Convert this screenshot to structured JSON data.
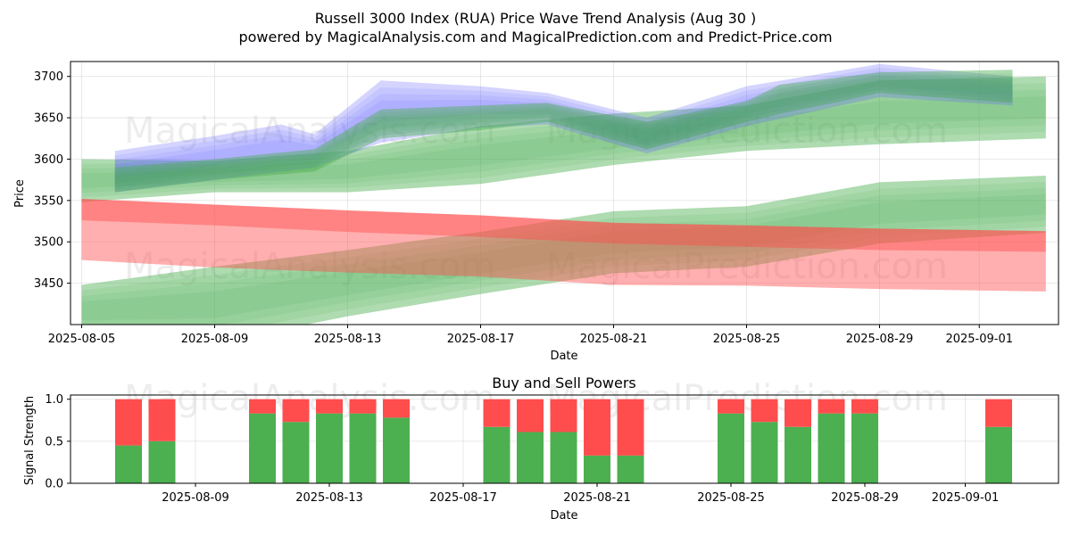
{
  "title": "Russell 3000 Index (RUA) Price Wave Trend Analysis (Aug 30 )",
  "subtitle": "powered by MagicalAnalysis.com and MagicalPrediction.com and Predict-Price.com",
  "watermarks": [
    "MagicalAnalysis.com",
    "MagicalPrediction.com"
  ],
  "colors": {
    "green_band": "#4caf50",
    "red_band": "#ff4d4d",
    "blue_band": "#6666ff",
    "buy": "#4caf50",
    "sell": "#ff4d4d"
  },
  "chart_data": [
    {
      "type": "area",
      "title": "",
      "xlabel": "Date",
      "ylabel": "Price",
      "xlim": [
        "2025-08-05",
        "2025-09-04"
      ],
      "ylim": [
        3400,
        3718
      ],
      "x_ticks": [
        "2025-08-05",
        "2025-08-09",
        "2025-08-13",
        "2025-08-17",
        "2025-08-21",
        "2025-08-25",
        "2025-08-29",
        "2025-09-01"
      ],
      "y_ticks": [
        3450,
        3500,
        3550,
        3600,
        3650,
        3700
      ],
      "grid": true,
      "series": [
        {
          "color": "green",
          "x": [
            "2025-08-05",
            "2025-08-09",
            "2025-08-13",
            "2025-08-17",
            "2025-08-21",
            "2025-08-25",
            "2025-08-29",
            "2025-09-03"
          ],
          "upper": [
            3600,
            3598,
            3610,
            3640,
            3655,
            3665,
            3695,
            3700
          ],
          "lower": [
            3548,
            3560,
            3560,
            3570,
            3593,
            3610,
            3618,
            3625
          ]
        },
        {
          "color": "green",
          "x": [
            "2025-08-05",
            "2025-08-09",
            "2025-08-13",
            "2025-08-17",
            "2025-08-21",
            "2025-08-25",
            "2025-08-29",
            "2025-09-03"
          ],
          "upper": [
            3448,
            3470,
            3490,
            3512,
            3537,
            3543,
            3572,
            3580
          ],
          "lower": [
            3385,
            3378,
            3410,
            3437,
            3462,
            3470,
            3498,
            3511
          ]
        },
        {
          "color": "red",
          "x": [
            "2025-08-05",
            "2025-08-09",
            "2025-08-13",
            "2025-08-17",
            "2025-08-21",
            "2025-08-25",
            "2025-08-29",
            "2025-09-03"
          ],
          "upper": [
            3552,
            3545,
            3538,
            3532,
            3523,
            3520,
            3516,
            3513
          ],
          "lower": [
            3478,
            3469,
            3463,
            3458,
            3448,
            3447,
            3443,
            3440
          ]
        },
        {
          "color": "red",
          "x": [
            "2025-08-05",
            "2025-08-09",
            "2025-08-13",
            "2025-08-17",
            "2025-08-21",
            "2025-08-25",
            "2025-08-29",
            "2025-09-03"
          ],
          "upper": [
            3552,
            3545,
            3538,
            3532,
            3523,
            3520,
            3516,
            3513
          ],
          "lower": [
            3526,
            3520,
            3512,
            3506,
            3498,
            3494,
            3490,
            3488
          ]
        },
        {
          "color": "blue",
          "x": [
            "2025-08-06",
            "2025-08-09",
            "2025-08-11",
            "2025-08-12",
            "2025-08-14",
            "2025-08-17",
            "2025-08-19",
            "2025-08-22",
            "2025-08-25",
            "2025-08-29",
            "2025-09-02"
          ],
          "upper": [
            3610,
            3628,
            3642,
            3630,
            3695,
            3688,
            3680,
            3650,
            3688,
            3715,
            3700
          ],
          "lower": [
            3560,
            3575,
            3585,
            3590,
            3620,
            3638,
            3642,
            3607,
            3640,
            3675,
            3665
          ]
        },
        {
          "color": "green",
          "x": [
            "2025-08-06",
            "2025-08-09",
            "2025-08-12",
            "2025-08-14",
            "2025-08-17",
            "2025-08-19",
            "2025-08-22",
            "2025-08-25",
            "2025-08-26",
            "2025-08-29",
            "2025-09-02"
          ],
          "upper": [
            3590,
            3600,
            3612,
            3660,
            3665,
            3668,
            3645,
            3670,
            3690,
            3705,
            3708
          ],
          "lower": [
            3560,
            3575,
            3585,
            3625,
            3635,
            3645,
            3612,
            3645,
            3655,
            3680,
            3668
          ]
        }
      ]
    },
    {
      "type": "bar",
      "title": "Buy and Sell Powers",
      "xlabel": "Date",
      "ylabel": "Signal Strength",
      "ylim": [
        0,
        1.05
      ],
      "y_ticks": [
        "0.0",
        "0.5",
        "1.0"
      ],
      "x_ticks": [
        "2025-08-09",
        "2025-08-13",
        "2025-08-17",
        "2025-08-21",
        "2025-08-25",
        "2025-08-29",
        "2025-09-01"
      ],
      "dates": [
        "2025-08-07",
        "2025-08-08",
        "2025-08-11",
        "2025-08-12",
        "2025-08-13",
        "2025-08-14",
        "2025-08-15",
        "2025-08-18",
        "2025-08-19",
        "2025-08-20",
        "2025-08-21",
        "2025-08-22",
        "2025-08-25",
        "2025-08-26",
        "2025-08-27",
        "2025-08-28",
        "2025-08-29",
        "2025-09-02"
      ],
      "series": [
        {
          "name": "buy",
          "values": [
            0.45,
            0.5,
            0.83,
            0.73,
            0.83,
            0.83,
            0.78,
            0.67,
            0.61,
            0.61,
            0.33,
            0.33,
            0.83,
            0.73,
            0.67,
            0.83,
            0.83,
            0.67
          ]
        },
        {
          "name": "sell",
          "values": [
            0.55,
            0.5,
            0.17,
            0.27,
            0.17,
            0.17,
            0.22,
            0.33,
            0.39,
            0.39,
            0.67,
            0.67,
            0.17,
            0.27,
            0.33,
            0.17,
            0.17,
            0.33
          ]
        }
      ]
    }
  ]
}
